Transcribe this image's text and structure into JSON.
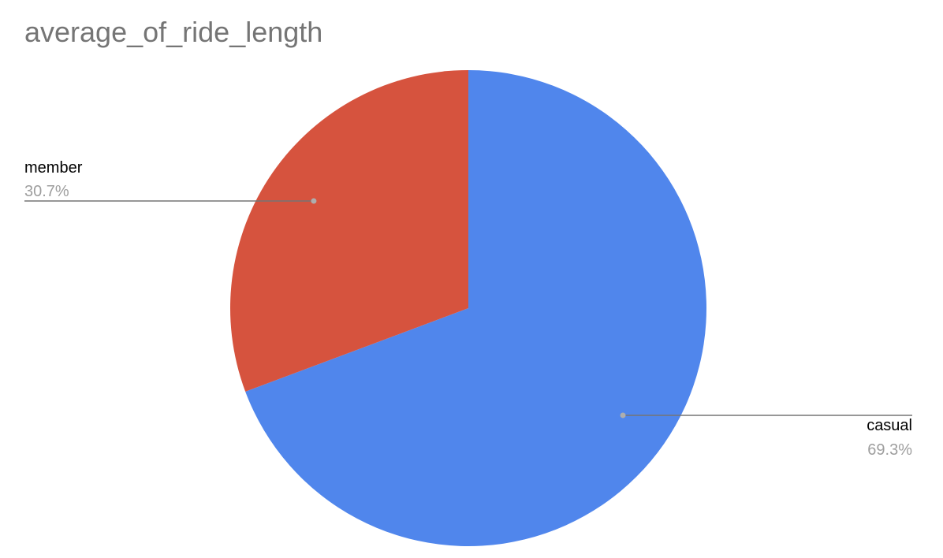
{
  "chart_data": {
    "type": "pie",
    "title": "average_of_ride_length",
    "slices": [
      {
        "label": "casual",
        "value": 69.3,
        "percent_label": "69.3%",
        "color": "#5086EC"
      },
      {
        "label": "member",
        "value": 30.7,
        "percent_label": "30.7%",
        "color": "#D6533E"
      }
    ],
    "label_color": "#000000",
    "percent_color": "#9E9E9E",
    "leader_line_color": "#757575",
    "start_angle": "12 o'clock",
    "direction": "clockwise"
  }
}
